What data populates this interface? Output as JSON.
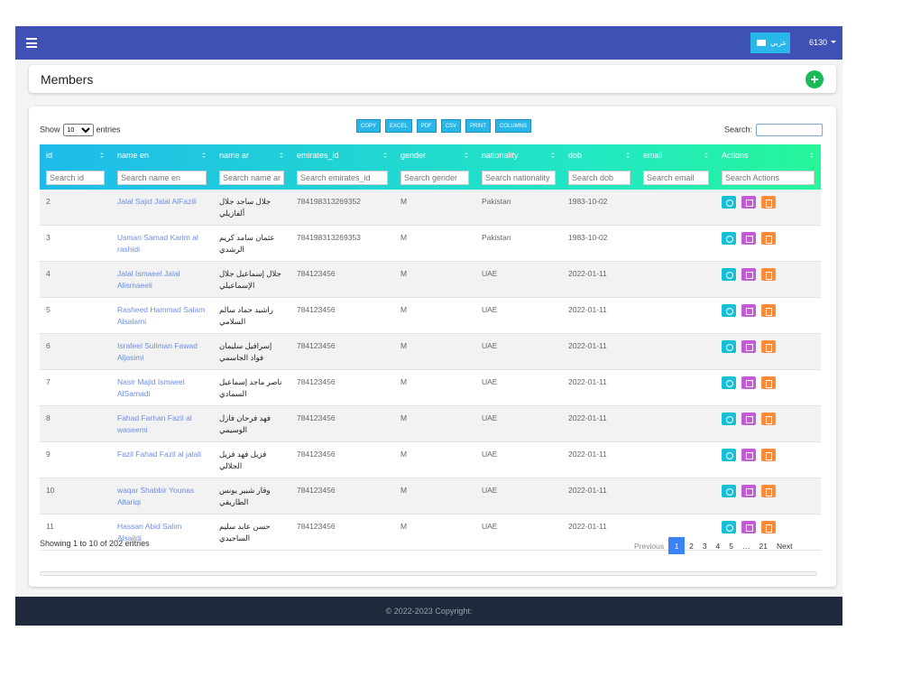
{
  "navbar": {
    "language_button": "عربي",
    "user": "6130"
  },
  "page_header": {
    "title": "Members"
  },
  "table_controls": {
    "show_label": "Show",
    "page_length": "10",
    "entries_label": "entries",
    "buttons": [
      "COPY",
      "EXCEL",
      "PDF",
      "CSV",
      "PRINT",
      "COLUMNS"
    ],
    "search_label": "Search:"
  },
  "table": {
    "columns": [
      "id",
      "name en",
      "name ar",
      "emirates_id",
      "gender",
      "nationality",
      "dob",
      "email",
      "Actions"
    ],
    "search_placeholders": [
      "Search id",
      "Search name en",
      "Search name ar",
      "Search emirates_id",
      "Search gender",
      "Search nationality",
      "Search dob",
      "Search email",
      "Search Actions"
    ],
    "rows": [
      {
        "id": "2",
        "name_en": "Jalal Sajid Jalal AlFazili",
        "name_ar": "جلال ساجد جلال ألفازيلي",
        "emirates_id": "784198313269352",
        "gender": "M",
        "nationality": "Pakistan",
        "dob": "1983-10-02"
      },
      {
        "id": "3",
        "name_en": "Usman Samad Karim al rashidi",
        "name_ar": "عثمان سامد كريم الرشدي",
        "emirates_id": "784198313269353",
        "gender": "M",
        "nationality": "Pakistan",
        "dob": "1983-10-02"
      },
      {
        "id": "4",
        "name_en": "Jalal Ismaeel Jalal Alismaeeli",
        "name_ar": "جلال إسماعيل جلال الإسماعيلي",
        "emirates_id": "784123456",
        "gender": "M",
        "nationality": "UAE",
        "dob": "2022-01-11"
      },
      {
        "id": "5",
        "name_en": "Rasheed Hammad Salam Alsalami",
        "name_ar": "راشيد حماد سالم السلامي",
        "emirates_id": "784123456",
        "gender": "M",
        "nationality": "UAE",
        "dob": "2022-01-11"
      },
      {
        "id": "6",
        "name_en": "Israfeel Suliman Fawad Aljasimi",
        "name_ar": "إسرافيل سليمان فواد الجاسمي",
        "emirates_id": "784123456",
        "gender": "M",
        "nationality": "UAE",
        "dob": "2022-01-11"
      },
      {
        "id": "7",
        "name_en": "Nasir Majid Ismaeel AlSamadi",
        "name_ar": "ناصر ماجد إسماعيل السمادي",
        "emirates_id": "784123456",
        "gender": "M",
        "nationality": "UAE",
        "dob": "2022-01-11"
      },
      {
        "id": "8",
        "name_en": "Fahad Farhan Fazil al waseemi",
        "name_ar": "فهد فرحان فازل الوسيمي",
        "emirates_id": "784123456",
        "gender": "M",
        "nationality": "UAE",
        "dob": "2022-01-11"
      },
      {
        "id": "9",
        "name_en": "Fazil Fahad Fazil al jalali",
        "name_ar": "فزيل فهد فزيل الجلالي",
        "emirates_id": "784123456",
        "gender": "M",
        "nationality": "UAE",
        "dob": "2022-01-11"
      },
      {
        "id": "10",
        "name_en": "waqar Shabbir Younas Altariqi",
        "name_ar": "وقار شبير يونس الطاريقي",
        "emirates_id": "784123456",
        "gender": "M",
        "nationality": "UAE",
        "dob": "2022-01-11"
      },
      {
        "id": "11",
        "name_en": "Hassan Abid Salim Alsajidi",
        "name_ar": "حسن عابد سليم الساجيدي",
        "emirates_id": "784123456",
        "gender": "M",
        "nationality": "UAE",
        "dob": "2022-01-11"
      }
    ]
  },
  "info": "Showing 1 to 10 of 202 entries",
  "pagination": [
    "Previous",
    "1",
    "2",
    "3",
    "4",
    "5",
    "…",
    "21",
    "Next"
  ],
  "footer": {
    "copyright": "© 2022-2023 Copyright:"
  }
}
